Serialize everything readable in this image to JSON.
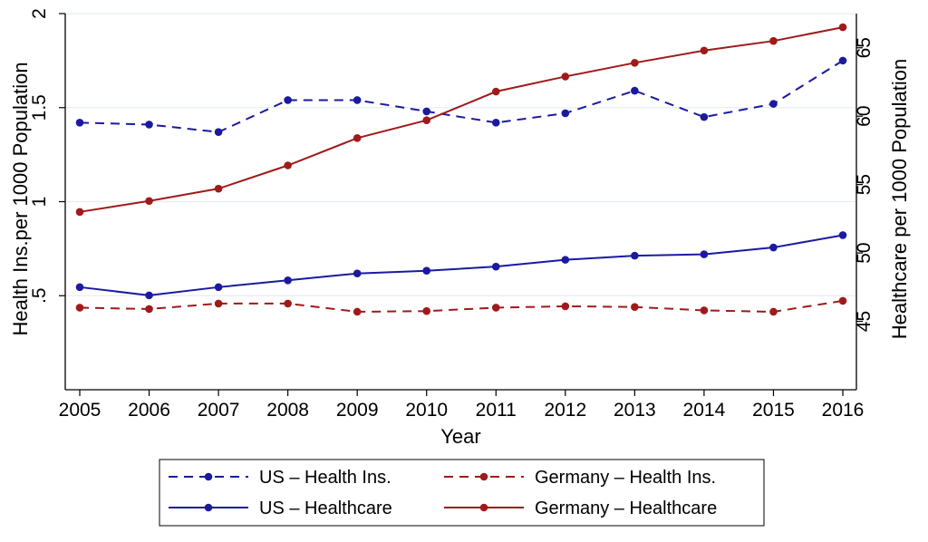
{
  "chart_data": {
    "type": "line",
    "xlabel": "Year",
    "ylabel_left": "Health Ins.per 1000 Population",
    "ylabel_right": "Healthcare per 1000 Population",
    "x": [
      2005,
      2006,
      2007,
      2008,
      2009,
      2010,
      2011,
      2012,
      2013,
      2014,
      2015,
      2016
    ],
    "x_ticks": [
      "2005",
      "2006",
      "2007",
      "2008",
      "2009",
      "2010",
      "2011",
      "2012",
      "2013",
      "2014",
      "2015",
      "2016"
    ],
    "y_left_ticks": [
      {
        "value": 0.5,
        "label": ".5"
      },
      {
        "value": 1,
        "label": "1"
      },
      {
        "value": 1.5,
        "label": "1.5"
      },
      {
        "value": 2,
        "label": "2"
      }
    ],
    "y_right_ticks": [
      {
        "value": 45,
        "label": "45"
      },
      {
        "value": 50,
        "label": "50"
      },
      {
        "value": 55,
        "label": "55"
      },
      {
        "value": 60,
        "label": "60"
      },
      {
        "value": 65,
        "label": "65"
      }
    ],
    "ylim_left": [
      0,
      2
    ],
    "ylim_right": [
      40,
      67.5
    ],
    "grid": true,
    "legend_position": "bottom",
    "series": [
      {
        "name": "US – Health Ins.",
        "axis": "left",
        "style": "dashed",
        "color": "#1a1aa0",
        "values": [
          1.42,
          1.41,
          1.37,
          1.54,
          1.54,
          1.48,
          1.42,
          1.47,
          1.59,
          1.45,
          1.52,
          1.75
        ]
      },
      {
        "name": "Germany – Health Ins.",
        "axis": "right",
        "style": "dashed",
        "color": "#a01a1a",
        "values": [
          46.0,
          45.9,
          46.3,
          46.3,
          45.7,
          45.75,
          46.0,
          46.1,
          46.05,
          45.8,
          45.7,
          46.5
        ]
      },
      {
        "name": "US – Healthcare",
        "axis": "right",
        "style": "solid",
        "color": "#1a1aa0",
        "values": [
          47.5,
          46.9,
          47.5,
          48.0,
          48.5,
          48.7,
          49.0,
          49.5,
          49.8,
          49.9,
          50.4,
          51.3
        ]
      },
      {
        "name": "Germany – Healthcare",
        "axis": "right",
        "style": "solid",
        "color": "#a01a1a",
        "values": [
          53.0,
          53.8,
          54.7,
          56.4,
          58.4,
          59.7,
          61.8,
          62.9,
          63.9,
          64.8,
          65.5,
          66.5
        ]
      }
    ]
  }
}
